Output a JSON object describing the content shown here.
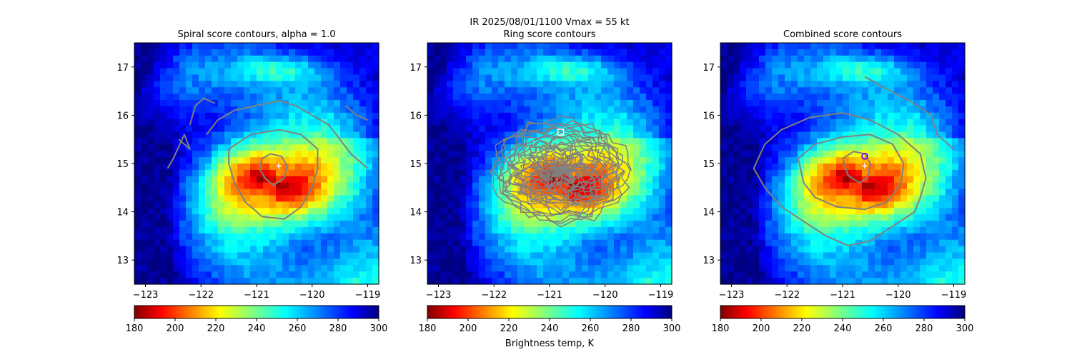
{
  "suptitle_line1": "IR  2025/08/01/1100    Vmax = 55 kt",
  "colorbar": {
    "label": "Brightness temp, K",
    "ticks": [
      180,
      200,
      220,
      240,
      260,
      280,
      300
    ],
    "range": [
      180,
      300
    ],
    "colormap": "jet_r"
  },
  "chart_data": [
    {
      "type": "heatmap",
      "title": "Spiral score contours, alpha =  1.0",
      "xlim": [
        -123.2,
        -118.8
      ],
      "ylim": [
        12.5,
        17.5
      ],
      "xticks": [
        -123,
        -122,
        -121,
        -120,
        -119
      ],
      "yticks": [
        13,
        14,
        15,
        16,
        17
      ],
      "xtick_labels": [
        "−123",
        "−122",
        "−121",
        "−120",
        "−119"
      ],
      "ytick_labels": [
        "13",
        "14",
        "15",
        "16",
        "17"
      ],
      "marker_plus": [
        -120.6,
        14.95
      ],
      "contours": [
        [
          [
            -121.9,
            15.6
          ],
          [
            -121.7,
            15.9
          ],
          [
            -121.4,
            16.1
          ],
          [
            -121.0,
            16.2
          ],
          [
            -120.6,
            16.3
          ],
          [
            -120.3,
            16.2
          ],
          [
            -120.0,
            16.0
          ],
          [
            -119.7,
            15.8
          ],
          [
            -119.5,
            15.5
          ],
          [
            -119.3,
            15.2
          ],
          [
            -119.0,
            14.9
          ]
        ],
        [
          [
            -121.5,
            15.3
          ],
          [
            -121.1,
            15.6
          ],
          [
            -120.6,
            15.7
          ],
          [
            -120.2,
            15.6
          ],
          [
            -119.9,
            15.3
          ],
          [
            -119.9,
            14.9
          ],
          [
            -120.0,
            14.5
          ],
          [
            -120.2,
            14.1
          ],
          [
            -120.5,
            13.85
          ],
          [
            -120.9,
            13.9
          ],
          [
            -121.2,
            14.2
          ],
          [
            -121.4,
            14.6
          ],
          [
            -121.5,
            15.0
          ],
          [
            -121.5,
            15.3
          ]
        ],
        [
          [
            -120.9,
            15.1
          ],
          [
            -120.75,
            15.2
          ],
          [
            -120.55,
            15.15
          ],
          [
            -120.45,
            14.95
          ],
          [
            -120.5,
            14.7
          ],
          [
            -120.7,
            14.55
          ],
          [
            -120.85,
            14.7
          ],
          [
            -120.95,
            14.9
          ],
          [
            -120.9,
            15.1
          ]
        ],
        [
          [
            -122.2,
            15.8
          ],
          [
            -122.1,
            16.2
          ],
          [
            -121.95,
            16.35
          ],
          [
            -121.75,
            16.25
          ]
        ],
        [
          [
            -122.4,
            15.5
          ],
          [
            -122.2,
            15.3
          ],
          [
            -122.3,
            15.6
          ],
          [
            -122.5,
            15.1
          ],
          [
            -122.6,
            14.9
          ]
        ],
        [
          [
            -119.4,
            16.2
          ],
          [
            -119.2,
            16.0
          ],
          [
            -119.0,
            15.9
          ]
        ]
      ]
    },
    {
      "type": "heatmap",
      "title": "Ring score contours",
      "xlim": [
        -123.2,
        -118.8
      ],
      "ylim": [
        12.5,
        17.5
      ],
      "xticks": [
        -123,
        -122,
        -121,
        -120,
        -119
      ],
      "yticks": [
        13,
        14,
        15,
        16,
        17
      ],
      "xtick_labels": [
        "−123",
        "−122",
        "−121",
        "−120",
        "−119"
      ],
      "ytick_labels": [
        "13",
        "14",
        "15",
        "16",
        "17"
      ],
      "marker_square": [
        -120.8,
        15.65
      ],
      "ring_center": [
        -120.8,
        14.85
      ],
      "ring_radius_deg": 1.1
    },
    {
      "type": "heatmap",
      "title": "Combined score contours",
      "xlim": [
        -123.2,
        -118.8
      ],
      "ylim": [
        12.5,
        17.5
      ],
      "xticks": [
        -123,
        -122,
        -121,
        -120,
        -119
      ],
      "yticks": [
        13,
        14,
        15,
        16,
        17
      ],
      "xtick_labels": [
        "−123",
        "−122",
        "−121",
        "−120",
        "−119"
      ],
      "ytick_labels": [
        "13",
        "14",
        "15",
        "16",
        "17"
      ],
      "marker_plus": [
        -120.6,
        14.95
      ],
      "marker_circle": [
        -120.6,
        15.15
      ],
      "contours": [
        [
          [
            -122.6,
            14.9
          ],
          [
            -122.4,
            15.4
          ],
          [
            -122.1,
            15.7
          ],
          [
            -121.6,
            15.95
          ],
          [
            -121.0,
            16.05
          ],
          [
            -120.5,
            15.9
          ],
          [
            -120.0,
            15.6
          ],
          [
            -119.6,
            15.2
          ],
          [
            -119.5,
            14.7
          ],
          [
            -119.6,
            14.3
          ],
          [
            -119.7,
            14.0
          ],
          [
            -120.1,
            13.7
          ],
          [
            -120.5,
            13.4
          ],
          [
            -120.9,
            13.3
          ],
          [
            -121.3,
            13.5
          ],
          [
            -121.7,
            13.8
          ],
          [
            -122.1,
            14.1
          ],
          [
            -122.4,
            14.5
          ],
          [
            -122.6,
            14.9
          ]
        ],
        [
          [
            -121.8,
            15.1
          ],
          [
            -121.5,
            15.4
          ],
          [
            -121.0,
            15.55
          ],
          [
            -120.5,
            15.6
          ],
          [
            -120.1,
            15.4
          ],
          [
            -119.9,
            15.0
          ],
          [
            -119.95,
            14.6
          ],
          [
            -120.2,
            14.2
          ],
          [
            -120.6,
            14.05
          ],
          [
            -121.1,
            14.1
          ],
          [
            -121.5,
            14.3
          ],
          [
            -121.7,
            14.6
          ],
          [
            -121.8,
            15.1
          ]
        ],
        [
          [
            -121.0,
            15.1
          ],
          [
            -120.8,
            15.25
          ],
          [
            -120.6,
            15.2
          ],
          [
            -120.5,
            15.0
          ],
          [
            -120.55,
            14.7
          ],
          [
            -120.7,
            14.6
          ],
          [
            -120.9,
            14.75
          ],
          [
            -121.0,
            15.1
          ]
        ],
        [
          [
            -120.6,
            16.8
          ],
          [
            -120.3,
            16.6
          ],
          [
            -119.8,
            16.3
          ],
          [
            -119.4,
            16.0
          ],
          [
            -119.3,
            15.6
          ],
          [
            -119.0,
            15.3
          ]
        ]
      ]
    }
  ]
}
